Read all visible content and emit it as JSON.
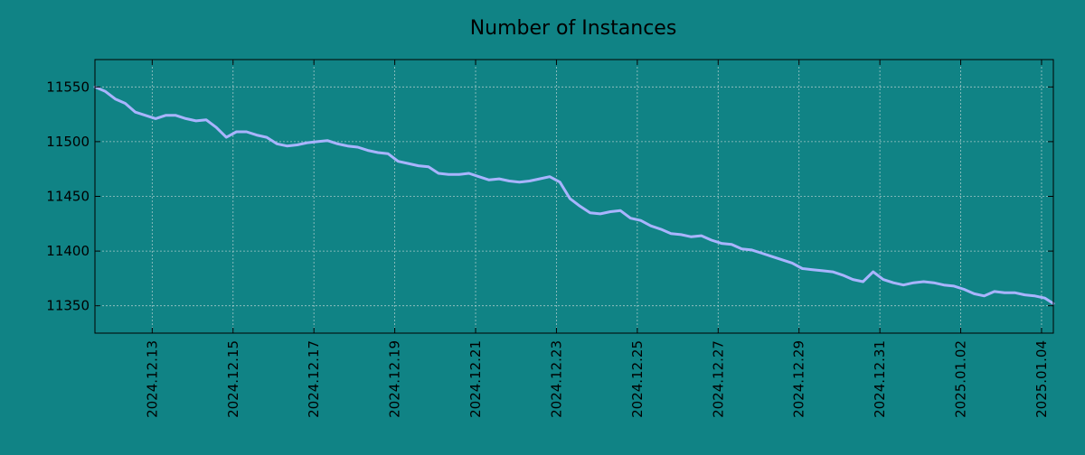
{
  "chart_data": {
    "type": "line",
    "title": "Number of Instances",
    "xlabel": "",
    "ylabel": "",
    "x_range": [
      "2024-12-11T14:00",
      "2025-01-04T07:00"
    ],
    "ylim": [
      11325,
      11575
    ],
    "y_ticks": [
      11350,
      11400,
      11450,
      11500,
      11550
    ],
    "x_ticks": [
      "2024.12.13",
      "2024.12.15",
      "2024.12.17",
      "2024.12.19",
      "2024.12.21",
      "2024.12.23",
      "2024.12.25",
      "2024.12.27",
      "2024.12.29",
      "2024.12.31",
      "2025.01.02",
      "2025.01.04"
    ],
    "grid": true,
    "colors": {
      "background": "#108385",
      "line": "#a9b4ff"
    },
    "series": [
      {
        "x": [
          "2024-12-11T14:00",
          "2024-12-11T20:00",
          "2024-12-12T02:00",
          "2024-12-12T08:00",
          "2024-12-12T14:00",
          "2024-12-12T20:00",
          "2024-12-13T02:00",
          "2024-12-13T08:00",
          "2024-12-13T14:00",
          "2024-12-13T20:00",
          "2024-12-14T02:00",
          "2024-12-14T08:00",
          "2024-12-14T14:00",
          "2024-12-14T20:00",
          "2024-12-15T02:00",
          "2024-12-15T08:00",
          "2024-12-15T14:00",
          "2024-12-15T20:00",
          "2024-12-16T02:00",
          "2024-12-16T08:00",
          "2024-12-16T14:00",
          "2024-12-16T20:00",
          "2024-12-17T02:00",
          "2024-12-17T08:00",
          "2024-12-17T14:00",
          "2024-12-17T20:00",
          "2024-12-18T02:00",
          "2024-12-18T08:00",
          "2024-12-18T14:00",
          "2024-12-18T20:00",
          "2024-12-19T02:00",
          "2024-12-19T08:00",
          "2024-12-19T14:00",
          "2024-12-19T20:00",
          "2024-12-20T02:00",
          "2024-12-20T08:00",
          "2024-12-20T14:00",
          "2024-12-20T20:00",
          "2024-12-21T02:00",
          "2024-12-21T08:00",
          "2024-12-21T14:00",
          "2024-12-21T20:00",
          "2024-12-22T02:00",
          "2024-12-22T08:00",
          "2024-12-22T14:00",
          "2024-12-22T20:00",
          "2024-12-23T02:00",
          "2024-12-23T08:00",
          "2024-12-23T14:00",
          "2024-12-23T20:00",
          "2024-12-24T02:00",
          "2024-12-24T08:00",
          "2024-12-24T14:00",
          "2024-12-24T20:00",
          "2024-12-25T02:00",
          "2024-12-25T08:00",
          "2024-12-25T14:00",
          "2024-12-25T20:00",
          "2024-12-26T02:00",
          "2024-12-26T08:00",
          "2024-12-26T14:00",
          "2024-12-26T20:00",
          "2024-12-27T02:00",
          "2024-12-27T08:00",
          "2024-12-27T14:00",
          "2024-12-27T20:00",
          "2024-12-28T02:00",
          "2024-12-28T08:00",
          "2024-12-28T14:00",
          "2024-12-28T20:00",
          "2024-12-29T02:00",
          "2024-12-29T08:00",
          "2024-12-29T14:00",
          "2024-12-29T20:00",
          "2024-12-30T02:00",
          "2024-12-30T08:00",
          "2024-12-30T14:00",
          "2024-12-30T20:00",
          "2024-12-31T02:00",
          "2024-12-31T08:00",
          "2024-12-31T14:00",
          "2024-12-31T20:00",
          "2025-01-01T02:00",
          "2025-01-01T08:00",
          "2025-01-01T14:00",
          "2025-01-01T20:00",
          "2025-01-02T02:00",
          "2025-01-02T08:00",
          "2025-01-02T14:00",
          "2025-01-02T20:00",
          "2025-01-03T02:00",
          "2025-01-03T08:00",
          "2025-01-03T14:00",
          "2025-01-03T20:00",
          "2025-01-04T02:00",
          "2025-01-04T07:00"
        ],
        "values": [
          11550,
          11546,
          11539,
          11535,
          11527,
          11524,
          11521,
          11524,
          11524,
          11521,
          11519,
          11520,
          11513,
          11504,
          11509,
          11509,
          11506,
          11504,
          11498,
          11496,
          11497,
          11499,
          11500,
          11501,
          11498,
          11496,
          11495,
          11492,
          11490,
          11489,
          11482,
          11480,
          11478,
          11477,
          11471,
          11470,
          11470,
          11471,
          11468,
          11465,
          11466,
          11464,
          11463,
          11464,
          11466,
          11468,
          11463,
          11448,
          11441,
          11435,
          11434,
          11436,
          11437,
          11430,
          11428,
          11423,
          11420,
          11416,
          11415,
          11413,
          11414,
          11410,
          11407,
          11406,
          11402,
          11401,
          11398,
          11395,
          11392,
          11389,
          11384,
          11383,
          11382,
          11381,
          11378,
          11374,
          11372,
          11381,
          11374,
          11371,
          11369,
          11371,
          11372,
          11371,
          11369,
          11368,
          11365,
          11361,
          11359,
          11363,
          11362,
          11362,
          11360,
          11359,
          11357,
          11352
        ]
      }
    ]
  }
}
